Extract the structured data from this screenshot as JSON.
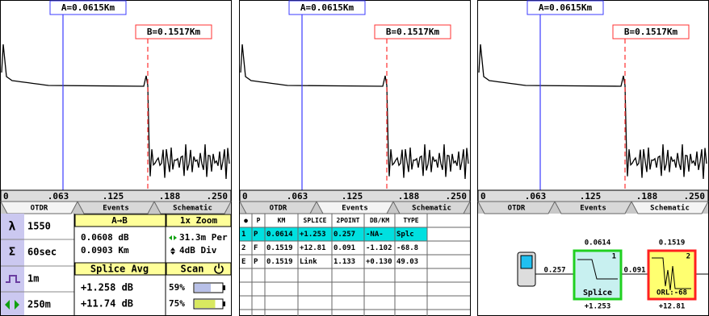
{
  "trace": {
    "marker_a": "A=0.0615Km",
    "marker_b": "B=0.1517Km",
    "axis_labels": [
      "0",
      ".063",
      ".125",
      ".188",
      ".250"
    ]
  },
  "tabs": [
    "OTDR",
    "Events",
    "Schematic"
  ],
  "otdr": {
    "settings": [
      {
        "icon": "λ",
        "value": "1550"
      },
      {
        "icon": "Σ",
        "value": "60sec"
      },
      {
        "value": "1m"
      },
      {
        "value": "250m"
      }
    ],
    "a_to_b": {
      "title": "A→B",
      "loss": "0.0608 dB",
      "distance": "0.0903 Km"
    },
    "splice_avg": {
      "title": "Splice Avg",
      "values": [
        "+1.258 dB",
        "+11.74 dB"
      ]
    },
    "zoom": {
      "title": "1x Zoom",
      "per": "31.3m Per",
      "div": "4dB Div"
    },
    "scan": {
      "title": "Scan",
      "levels": [
        "59%",
        "75%"
      ]
    }
  },
  "events": {
    "headers": [
      "●",
      "P",
      "KM",
      "SPLICE",
      "2POINT",
      "DB/KM",
      "TYPE"
    ],
    "rows": [
      [
        "1",
        "P",
        "0.0614",
        "+1.253",
        "0.257",
        "-NA-",
        "Splc"
      ],
      [
        "2",
        "F",
        "0.1519",
        "+12.81",
        "0.091",
        "-1.102",
        "-68.8"
      ],
      [
        "E",
        "P",
        "0.1519",
        "Link",
        "1.133",
        "+0.130",
        "49.03"
      ]
    ]
  },
  "schematic": {
    "events": [
      {
        "km": "0.0614",
        "index": "1",
        "label": "Splice",
        "loss": "+1.253"
      },
      {
        "km": "0.1519",
        "index": "2",
        "label": "ORL:-68",
        "loss": "+12.81"
      }
    ],
    "spans": [
      "0.257",
      "0.091"
    ]
  }
}
